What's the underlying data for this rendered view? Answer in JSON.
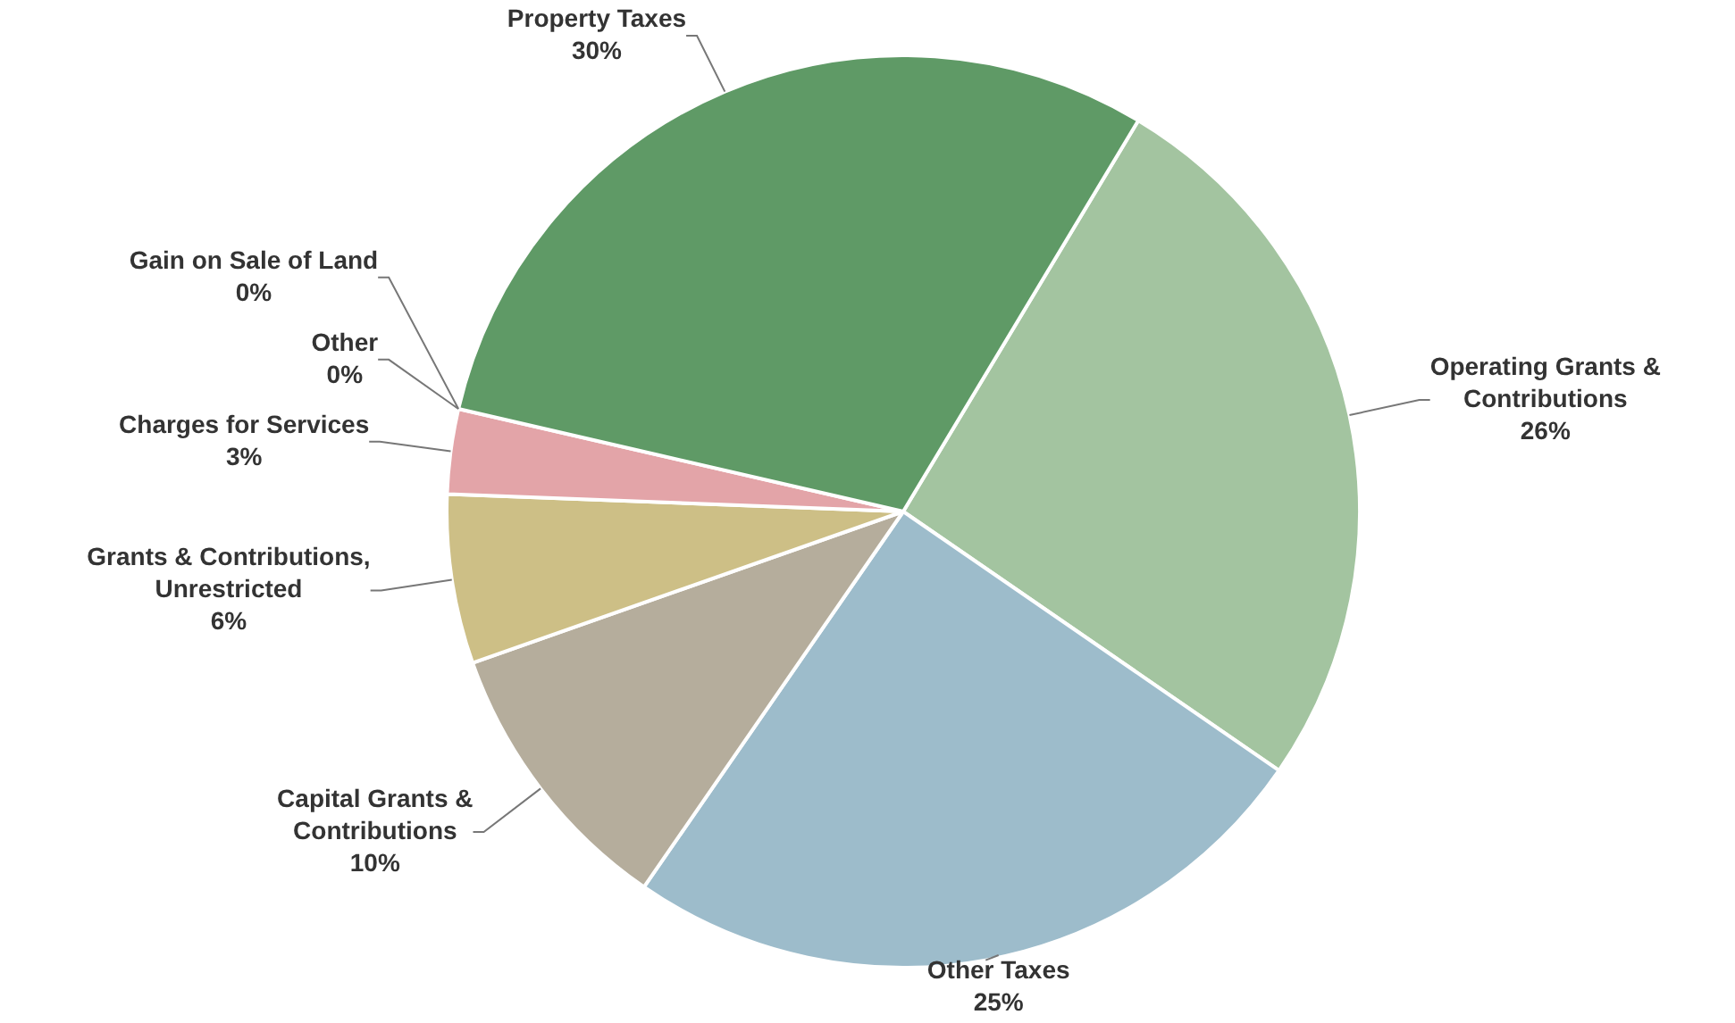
{
  "chart_data": {
    "type": "pie",
    "categories": [
      "Operating Grants & Contributions",
      "Other Taxes",
      "Capital Grants & Contributions",
      "Grants & Contributions, Unrestricted",
      "Charges for Services",
      "Other",
      "Gain on Sale of Land",
      "Property Taxes"
    ],
    "values": [
      26,
      25,
      10,
      6,
      3,
      0,
      0,
      30
    ],
    "colors": [
      "#a3c4a0",
      "#9dbccb",
      "#b5ad9c",
      "#cdbf86",
      "#e3a4a8",
      "#c9dcc6",
      "#a6c9a6",
      "#5f9a66"
    ],
    "value_labels": [
      "26%",
      "25%",
      "10%",
      "6%",
      "3%",
      "0%",
      "0%",
      "30%"
    ]
  }
}
